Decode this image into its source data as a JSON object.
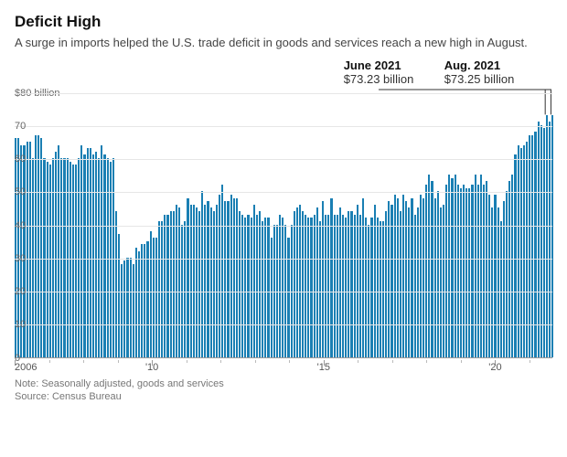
{
  "title": "Deficit High",
  "subtitle": "A surge in imports helped the U.S. trade deficit in goods and services reach a new high in August.",
  "note": "Note: Seasonally adjusted, goods and services",
  "source": "Source: Census Bureau",
  "chart": {
    "type": "bar",
    "bar_color": "#1a7fb3",
    "grid_color": "#e6e6e6",
    "axis_color": "#999999",
    "text_color": "#666666",
    "background_color": "#ffffff",
    "y_axis": {
      "min": 0,
      "max": 80,
      "ticks": [
        0,
        10,
        20,
        30,
        40,
        50,
        60,
        70
      ],
      "top_label": "$80 billion",
      "label_fontsize": 11
    },
    "x_axis": {
      "start_year": 2006,
      "end_year": 2021,
      "major_ticks": [
        2006,
        2010,
        2015,
        2020
      ],
      "major_labels": [
        "2006",
        "'10",
        "'15",
        "'20"
      ],
      "label_fontsize": 11
    },
    "callouts": [
      {
        "label": "June 2021",
        "value": "$73.23 billion",
        "bar_index": 185
      },
      {
        "label": "Aug. 2021",
        "value": "$73.25 billion",
        "bar_index": 187
      }
    ],
    "values": [
      66,
      66,
      64,
      64,
      65,
      65,
      60,
      67,
      67,
      66,
      60,
      59,
      58,
      60,
      62,
      64,
      60,
      60,
      60,
      59,
      58,
      58,
      60,
      64,
      61,
      63,
      63,
      61,
      62,
      60,
      64,
      61,
      60,
      59,
      60,
      44,
      37,
      28,
      29,
      30,
      30,
      28,
      33,
      32,
      34,
      34,
      35,
      38,
      36,
      36,
      41,
      41,
      43,
      43,
      44,
      44,
      46,
      45,
      40,
      41,
      48,
      46,
      46,
      45,
      44,
      50,
      46,
      47,
      45,
      44,
      46,
      49,
      52,
      47,
      47,
      49,
      48,
      48,
      44,
      43,
      42,
      43,
      42,
      46,
      43,
      44,
      41,
      42,
      42,
      36,
      40,
      40,
      43,
      42,
      40,
      36,
      40,
      44,
      45,
      46,
      44,
      43,
      42,
      42,
      43,
      45,
      41,
      47,
      43,
      43,
      48,
      43,
      43,
      45,
      43,
      42,
      44,
      44,
      43,
      46,
      43,
      48,
      42,
      40,
      42,
      46,
      42,
      41,
      41,
      44,
      47,
      46,
      49,
      48,
      44,
      49,
      47,
      45,
      48,
      43,
      45,
      49,
      48,
      52,
      55,
      53,
      48,
      50,
      45,
      46,
      52,
      55,
      54,
      55,
      52,
      51,
      52,
      51,
      51,
      52,
      55,
      52,
      55,
      52,
      53,
      49,
      45,
      49,
      45,
      41,
      47,
      50,
      53,
      55,
      61,
      64,
      63,
      64,
      65,
      67,
      67,
      68,
      71,
      70,
      69,
      73,
      71,
      73
    ]
  }
}
